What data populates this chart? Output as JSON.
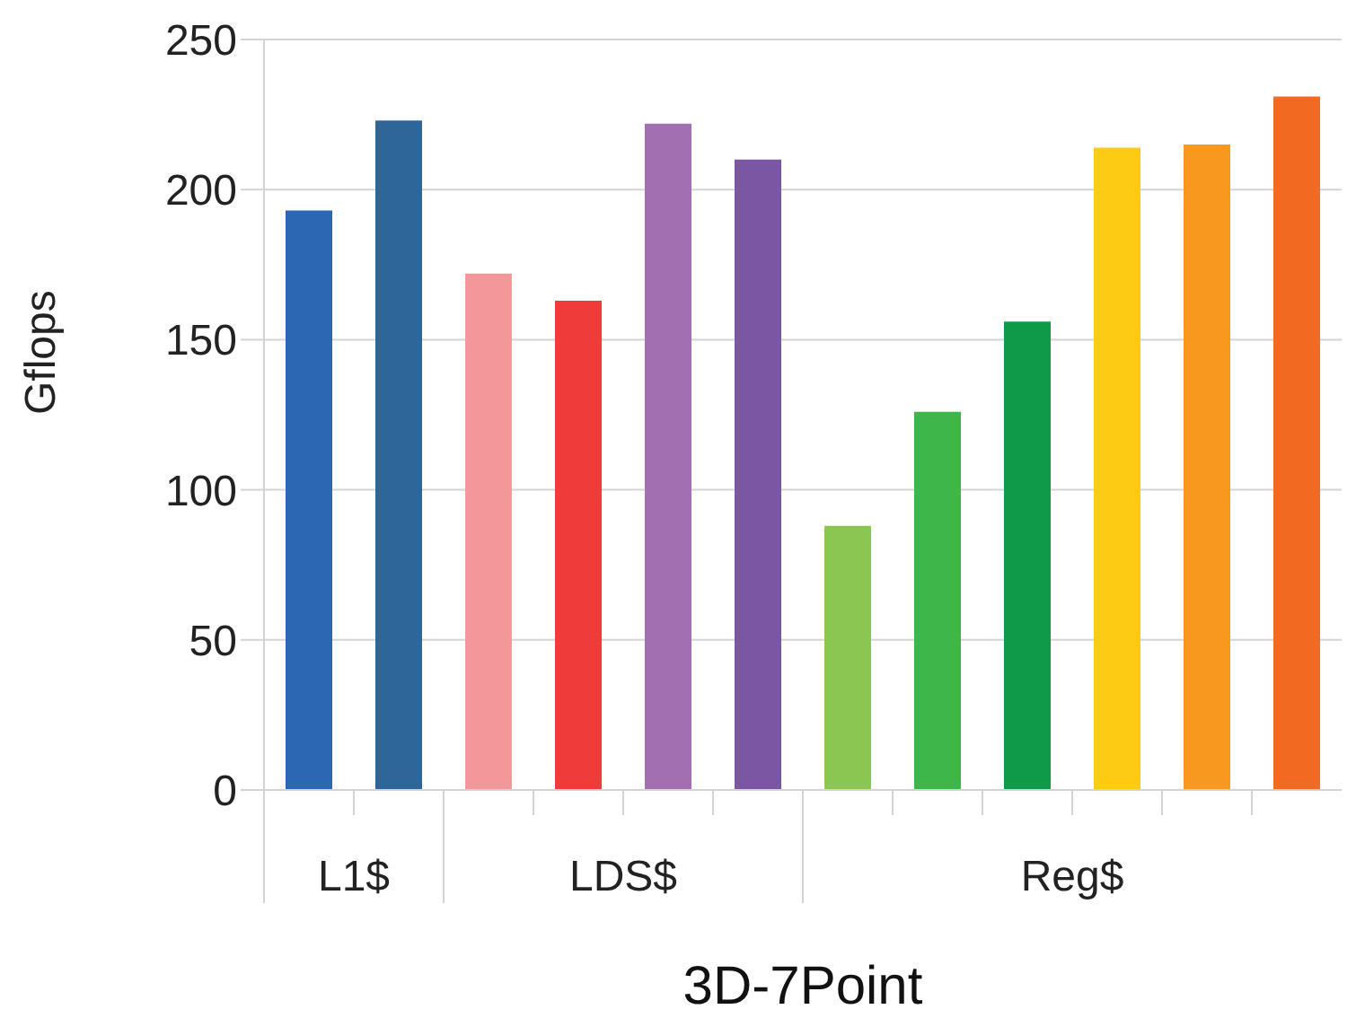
{
  "chart_data": {
    "type": "bar",
    "xlabel": "3D-7Point",
    "ylabel": "Gflops",
    "categories": [
      null,
      null,
      null,
      null,
      null,
      null,
      null,
      null,
      null,
      null,
      null,
      null
    ],
    "annotations": [
      "L1$",
      "LDS$",
      "Reg$"
    ],
    "values": [
      193,
      223,
      172,
      163,
      222,
      210,
      88,
      126,
      156,
      214,
      215,
      231
    ],
    "colors": [
      "#2c67b4",
      "#2f6699",
      "#f4979a",
      "#ef3b3a",
      "#a270b0",
      "#7b56a3",
      "#8bc652",
      "#3fb64a",
      "#0e9a49",
      "#fdcb13",
      "#f8981f",
      "#f26922"
    ],
    "ylim": [
      0,
      250
    ],
    "yticks": [
      0,
      50,
      100,
      150,
      200,
      250
    ],
    "grid": "y"
  }
}
